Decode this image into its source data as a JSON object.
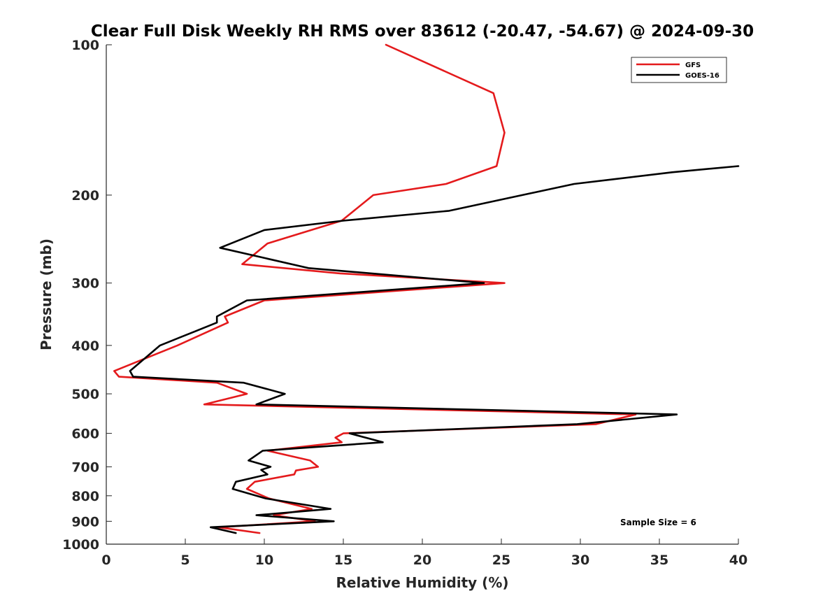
{
  "chart_data": {
    "type": "line",
    "title": "Clear Full Disk Weekly RH RMS over 83612 (-20.47, -54.67) @ 2024-09-30",
    "xlabel": "Relative Humidity (%)",
    "ylabel": "Pressure (mb)",
    "xlim": [
      0,
      40
    ],
    "ylim": [
      1000,
      100
    ],
    "yscale": "log",
    "y_reversed": true,
    "xticks": [
      0,
      5,
      10,
      15,
      20,
      25,
      30,
      35,
      40
    ],
    "yticks": [
      100,
      200,
      300,
      400,
      500,
      600,
      700,
      800,
      900,
      1000
    ],
    "grid": false,
    "legend_position": "top-right",
    "annotation": "Sample Size = 6",
    "series": [
      {
        "name": "GFS",
        "color": "#e41a1c",
        "points": [
          [
            17.7,
            100
          ],
          [
            24.5,
            125
          ],
          [
            25.2,
            150
          ],
          [
            24.7,
            175
          ],
          [
            21.5,
            190
          ],
          [
            16.9,
            200
          ],
          [
            14.9,
            225
          ],
          [
            10.2,
            250
          ],
          [
            8.6,
            275
          ],
          [
            14.8,
            287
          ],
          [
            25.2,
            300
          ],
          [
            10.0,
            325
          ],
          [
            7.5,
            350
          ],
          [
            7.7,
            360
          ],
          [
            4.5,
            400
          ],
          [
            0.5,
            450
          ],
          [
            0.8,
            462
          ],
          [
            7.0,
            475
          ],
          [
            8.9,
            500
          ],
          [
            6.2,
            525
          ],
          [
            33.5,
            550
          ],
          [
            31.0,
            575
          ],
          [
            15.0,
            600
          ],
          [
            14.5,
            612
          ],
          [
            14.9,
            625
          ],
          [
            10.2,
            650
          ],
          [
            12.9,
            680
          ],
          [
            13.4,
            700
          ],
          [
            12.0,
            712
          ],
          [
            11.9,
            725
          ],
          [
            9.4,
            750
          ],
          [
            8.9,
            775
          ],
          [
            10.3,
            810
          ],
          [
            13.0,
            850
          ],
          [
            10.6,
            875
          ],
          [
            13.2,
            900
          ],
          [
            7.1,
            925
          ],
          [
            9.7,
            950
          ]
        ]
      },
      {
        "name": "GOES-16",
        "color": "#000000",
        "points": [
          [
            40.0,
            175
          ],
          [
            35.8,
            180
          ],
          [
            29.6,
            190
          ],
          [
            21.7,
            215
          ],
          [
            15.0,
            225
          ],
          [
            10.0,
            235
          ],
          [
            7.2,
            255
          ],
          [
            12.8,
            280
          ],
          [
            23.9,
            300
          ],
          [
            8.9,
            325
          ],
          [
            7.0,
            350
          ],
          [
            7.0,
            360
          ],
          [
            5.6,
            375
          ],
          [
            3.4,
            400
          ],
          [
            1.5,
            450
          ],
          [
            1.7,
            462
          ],
          [
            8.7,
            475
          ],
          [
            11.3,
            500
          ],
          [
            9.5,
            525
          ],
          [
            36.1,
            550
          ],
          [
            29.8,
            575
          ],
          [
            15.4,
            600
          ],
          [
            17.5,
            625
          ],
          [
            9.9,
            650
          ],
          [
            9.0,
            680
          ],
          [
            10.4,
            700
          ],
          [
            9.8,
            710
          ],
          [
            10.2,
            725
          ],
          [
            8.2,
            750
          ],
          [
            8.0,
            775
          ],
          [
            10.1,
            810
          ],
          [
            14.2,
            850
          ],
          [
            9.5,
            875
          ],
          [
            14.4,
            900
          ],
          [
            6.6,
            925
          ],
          [
            8.2,
            950
          ]
        ]
      }
    ]
  }
}
